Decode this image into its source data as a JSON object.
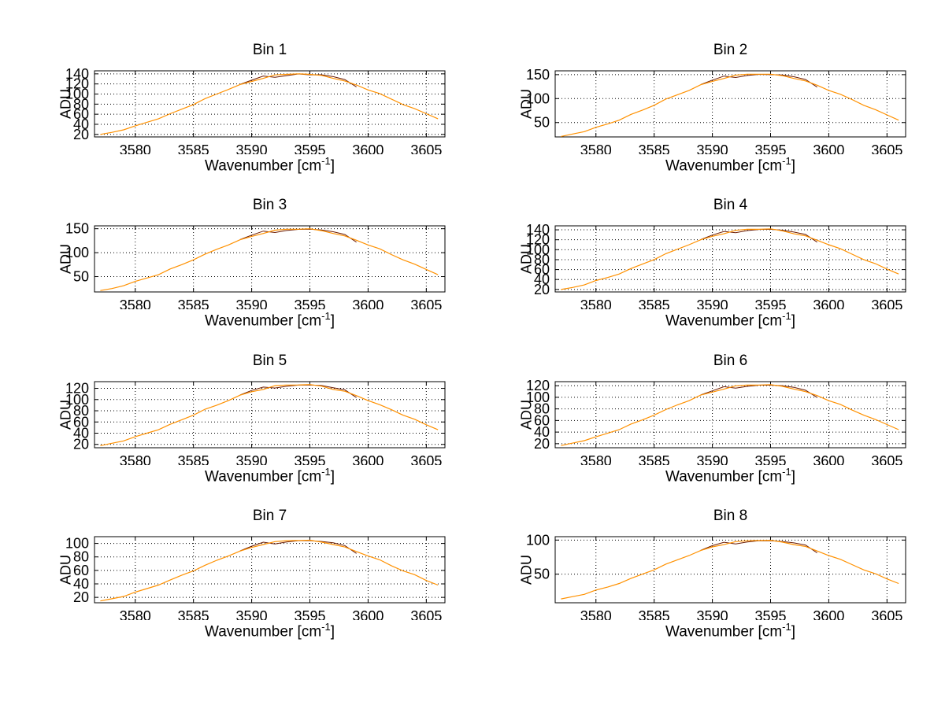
{
  "page": {
    "background": "#ffffff"
  },
  "axis_shared": {
    "ylabel": "ADU",
    "xlabel_main": "Wavenumber [cm",
    "xlabel_sup": "-1",
    "xlabel_close": "]",
    "x": [
      3577,
      3578,
      3579,
      3580,
      3581,
      3582,
      3583,
      3584,
      3585,
      3586,
      3587,
      3588,
      3589,
      3590,
      3591,
      3592,
      3593,
      3594,
      3595,
      3596,
      3597,
      3598,
      3599,
      3600,
      3601,
      3602,
      3603,
      3604,
      3605,
      3606
    ],
    "xticks": [
      3580,
      3585,
      3590,
      3595,
      3600,
      3605
    ],
    "xlim": [
      3576.5,
      3606.6
    ],
    "line_color": "#ff9100",
    "noise_color": "#6b1a00",
    "grid_color": "#000000",
    "grid_style": "dotted",
    "legend": "none"
  },
  "chart_data": [
    {
      "type": "line",
      "title": "Bin 1",
      "ylabel": "ADU",
      "yticks": [
        20,
        40,
        60,
        80,
        100,
        120,
        140
      ],
      "ylim": [
        15,
        146
      ],
      "values": [
        19,
        24,
        30,
        36,
        44,
        52,
        60,
        70,
        80,
        90,
        100,
        110,
        118,
        125,
        132,
        137,
        139,
        141,
        138,
        137,
        132,
        125,
        118,
        109,
        100,
        90,
        80,
        70,
        61,
        52
      ]
    },
    {
      "type": "line",
      "title": "Bin 2",
      "ylabel": "ADU",
      "yticks": [
        50,
        100,
        150
      ],
      "ylim": [
        20,
        158
      ],
      "values": [
        20,
        26,
        32,
        39,
        47,
        56,
        66,
        76,
        87,
        98,
        108,
        118,
        128,
        136,
        143,
        148,
        151,
        152,
        150,
        148,
        143,
        136,
        128,
        118,
        108,
        98,
        87,
        76,
        66,
        56
      ]
    },
    {
      "type": "line",
      "title": "Bin 3",
      "ylabel": "ADU",
      "yticks": [
        50,
        100,
        150
      ],
      "ylim": [
        18,
        156
      ],
      "values": [
        20,
        25,
        32,
        39,
        47,
        55,
        65,
        75,
        86,
        96,
        107,
        117,
        126,
        134,
        141,
        146,
        149,
        150,
        149,
        146,
        141,
        134,
        126,
        117,
        107,
        96,
        86,
        75,
        65,
        55
      ]
    },
    {
      "type": "line",
      "title": "Bin 4",
      "ylabel": "ADU",
      "yticks": [
        20,
        40,
        60,
        80,
        100,
        120,
        140
      ],
      "ylim": [
        15,
        148
      ],
      "values": [
        19,
        24,
        30,
        37,
        44,
        52,
        61,
        71,
        81,
        91,
        101,
        111,
        119,
        127,
        133,
        138,
        141,
        142,
        141,
        138,
        133,
        127,
        119,
        111,
        101,
        91,
        81,
        71,
        61,
        52
      ]
    },
    {
      "type": "line",
      "title": "Bin 5",
      "ylabel": "ADU",
      "yticks": [
        20,
        40,
        60,
        80,
        100,
        120
      ],
      "ylim": [
        14,
        132
      ],
      "values": [
        17,
        22,
        27,
        33,
        40,
        47,
        55,
        64,
        73,
        82,
        90,
        99,
        107,
        114,
        119,
        124,
        126,
        127,
        126,
        124,
        119,
        114,
        107,
        99,
        90,
        82,
        73,
        64,
        55,
        47
      ]
    },
    {
      "type": "line",
      "title": "Bin 6",
      "ylabel": "ADU",
      "yticks": [
        20,
        40,
        60,
        80,
        100,
        120
      ],
      "ylim": [
        13,
        127
      ],
      "values": [
        16,
        21,
        26,
        31,
        38,
        45,
        53,
        61,
        70,
        78,
        87,
        95,
        103,
        109,
        115,
        119,
        121,
        122,
        121,
        119,
        115,
        109,
        103,
        95,
        87,
        78,
        70,
        61,
        53,
        45
      ]
    },
    {
      "type": "line",
      "title": "Bin 7",
      "ylabel": "ADU",
      "yticks": [
        20,
        40,
        60,
        80,
        100
      ],
      "ylim": [
        12,
        110
      ],
      "values": [
        14,
        18,
        22,
        27,
        33,
        39,
        45,
        53,
        60,
        67,
        75,
        82,
        88,
        94,
        99,
        102,
        104,
        105,
        104,
        102,
        99,
        94,
        88,
        82,
        75,
        67,
        60,
        53,
        45,
        39
      ]
    },
    {
      "type": "line",
      "title": "Bin 8",
      "ylabel": "ADU",
      "yticks": [
        50,
        100
      ],
      "ylim": [
        8,
        105
      ],
      "values": [
        13,
        17,
        21,
        26,
        31,
        37,
        43,
        50,
        57,
        64,
        71,
        78,
        84,
        90,
        94,
        97,
        99,
        100,
        99,
        97,
        94,
        90,
        84,
        78,
        71,
        64,
        57,
        50,
        43,
        37
      ]
    }
  ]
}
